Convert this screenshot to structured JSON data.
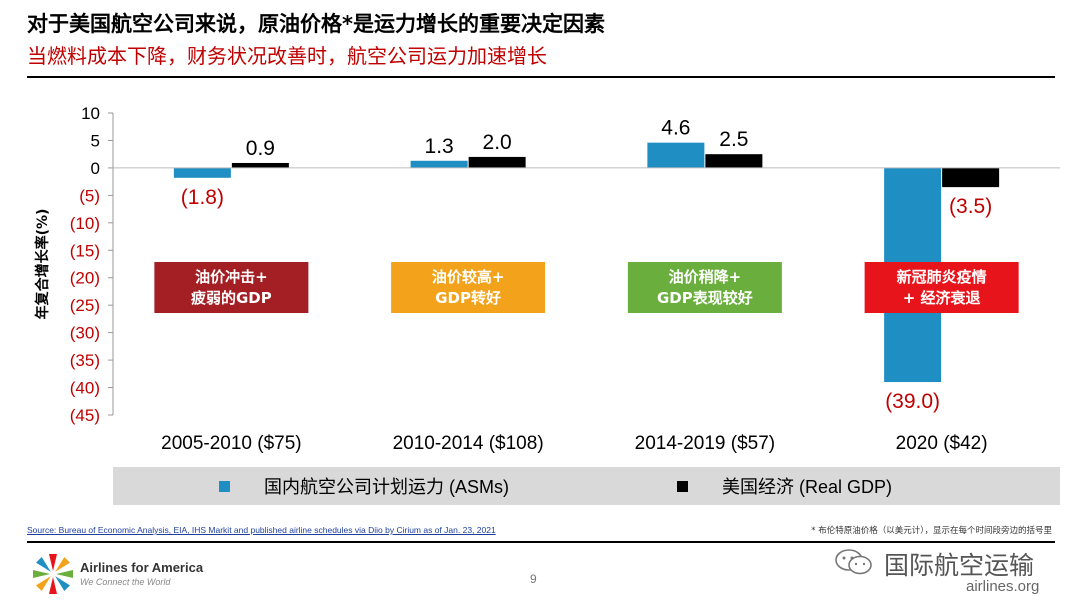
{
  "header": {
    "title": "对于美国航空公司来说，原油价格*是运力增长的重要决定因素",
    "subtitle": "当燃料成本下降，财务状况改善时，航空公司运力加速增长"
  },
  "chart_data": {
    "type": "bar",
    "ylabel": "年复合增长率(%)",
    "ylim": [
      -45,
      10
    ],
    "yticks": [
      10,
      5,
      0,
      -5,
      -10,
      -15,
      -20,
      -25,
      -30,
      -35,
      -40,
      -45
    ],
    "ytick_labels": [
      "10",
      "5",
      "0",
      "(5)",
      "(10)",
      "(15)",
      "(20)",
      "(25)",
      "(30)",
      "(35)",
      "(40)",
      "(45)"
    ],
    "categories": [
      "2005-2010 ($75)",
      "2010-2014 ($108)",
      "2014-2019 ($57)",
      "2020 ($42)"
    ],
    "series": [
      {
        "name": "国内航空公司计划运力 (ASMs)",
        "color": "#1f8fc3",
        "values": [
          -1.8,
          1.3,
          4.6,
          -39.0
        ],
        "labels": [
          "(1.8)",
          "1.3",
          "4.6",
          "(39.0)"
        ]
      },
      {
        "name": "美国经济 (Real GDP)",
        "color": "#000000",
        "values": [
          0.9,
          2.0,
          2.5,
          -3.5
        ],
        "labels": [
          "0.9",
          "2.0",
          "2.5",
          "(3.5)"
        ]
      }
    ],
    "negative_label_color": "#c00000",
    "annotations": [
      {
        "category": "2005-2010 ($75)",
        "lines": [
          "油价冲击+",
          "疲弱的GDP"
        ],
        "color": "#a31f24"
      },
      {
        "category": "2010-2014 ($108)",
        "lines": [
          "油价较高+",
          "GDP转好"
        ],
        "color": "#f2a31b"
      },
      {
        "category": "2014-2019 ($57)",
        "lines": [
          "油价稍降+",
          "GDP表现较好"
        ],
        "color": "#6aaf3d"
      },
      {
        "category": "2020 ($42)",
        "lines": [
          "新冠肺炎疫情",
          "+ 经济衰退"
        ],
        "color": "#e8141c"
      }
    ],
    "legend_position": "bottom",
    "grid": false
  },
  "footer": {
    "source": "Source: Bureau of Economic Analysis, EIA, IHS Markit and published airline schedules via Diio by Cirium as of Jan. 23, 2021",
    "footnote": "* 布伦特原油价格（以美元计），显示在每个时间段旁边的括号里",
    "page_number": "9",
    "logo_name": "Airlines for America",
    "logo_tagline": "We Connect the World",
    "watermark_name": "国际航空运输",
    "watermark_url": "airlines.org"
  },
  "icons": {
    "logo": "airlines-for-america-star-logo",
    "watermark": "wechat-icon"
  }
}
